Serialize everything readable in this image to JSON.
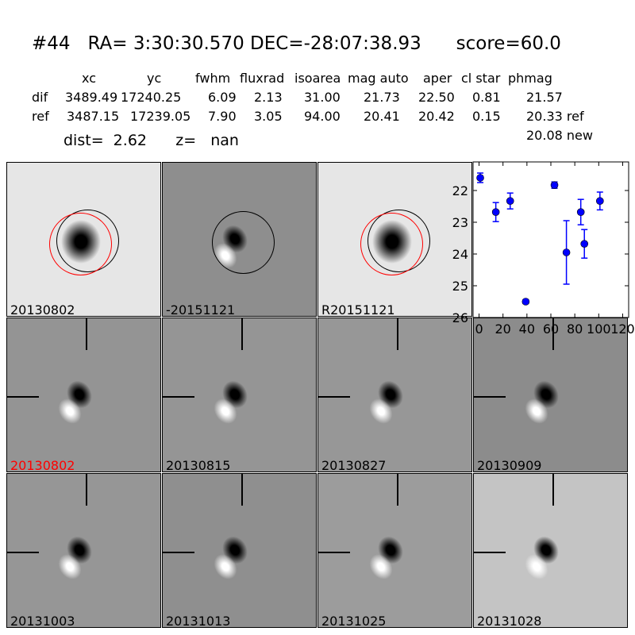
{
  "title": "#44   RA= 3:30:30.570 DEC=-28:07:38.93      score=60.0",
  "table": {
    "headers": [
      "xc",
      "yc",
      "fwhm",
      "fluxrad",
      "isoarea",
      "mag auto",
      "aper",
      "cl star",
      "phmag"
    ],
    "rows": [
      {
        "label": "dif",
        "values": [
          "3489.49",
          "17240.25",
          "6.09",
          "2.13",
          "31.00",
          "21.73",
          "22.50",
          "0.81",
          "21.57"
        ]
      },
      {
        "label": "ref",
        "values": [
          "3487.15",
          "17239.05",
          "7.90",
          "3.05",
          "94.00",
          "20.41",
          "20.42",
          "0.15",
          "20.33 ref"
        ]
      }
    ],
    "phmag_new": "20.08 new"
  },
  "dist_line": "dist=  2.62      z=   nan",
  "stamps_top": [
    {
      "label": "20130802",
      "bg": "#e6e6e6"
    },
    {
      "label": "-20151121",
      "bg": "#8e8e8e"
    },
    {
      "label": "R20151121",
      "bg": "#e6e6e6"
    }
  ],
  "stamps": [
    {
      "label": "20130802",
      "color": "#ff0000",
      "bg": "#949494"
    },
    {
      "label": "20130815",
      "color": "#000000",
      "bg": "#959595"
    },
    {
      "label": "20130827",
      "color": "#000000",
      "bg": "#979797"
    },
    {
      "label": "20130909",
      "color": "#000000",
      "bg": "#8c8c8c"
    },
    {
      "label": "20131003",
      "color": "#000000",
      "bg": "#969696"
    },
    {
      "label": "20131013",
      "color": "#000000",
      "bg": "#8f8f8f"
    },
    {
      "label": "20131025",
      "color": "#000000",
      "bg": "#9c9c9c"
    },
    {
      "label": "20131028",
      "color": "#000000",
      "bg": "#c4c4c4"
    }
  ],
  "chart_data": {
    "type": "scatter",
    "xlim": [
      -5,
      125
    ],
    "ylim": [
      26,
      21.1
    ],
    "y_inverted": true,
    "xticks": [
      0,
      20,
      40,
      60,
      80,
      100,
      120
    ],
    "yticks": [
      22,
      23,
      24,
      25,
      26
    ],
    "color": "#0000ff",
    "points": [
      {
        "x": 1,
        "y": 21.6,
        "err": 0.15
      },
      {
        "x": 14,
        "y": 22.68,
        "err": 0.3
      },
      {
        "x": 26,
        "y": 22.33,
        "err": 0.25
      },
      {
        "x": 39,
        "y": 25.5,
        "err": 0.06
      },
      {
        "x": 63,
        "y": 21.83,
        "err": 0.1
      },
      {
        "x": 73,
        "y": 23.95,
        "err": 1.0
      },
      {
        "x": 85,
        "y": 22.68,
        "err": 0.4
      },
      {
        "x": 88,
        "y": 23.68,
        "err": 0.45
      },
      {
        "x": 101,
        "y": 22.33,
        "err": 0.28
      }
    ]
  }
}
